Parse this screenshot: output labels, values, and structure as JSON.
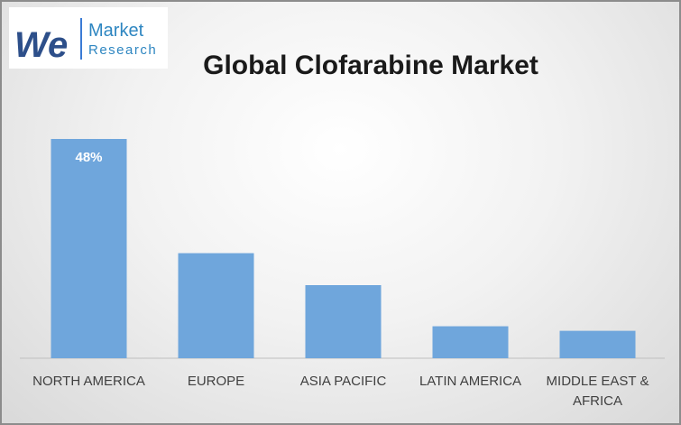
{
  "logo": {
    "mark": "We",
    "line1": "Market",
    "line2": "Research"
  },
  "chart_data": {
    "type": "bar",
    "title": "Global Clofarabine Market",
    "categories": [
      "NORTH AMERICA",
      "EUROPE",
      "ASIA PACIFIC",
      "LATIN AMERICA",
      "MIDDLE EAST & AFRICA"
    ],
    "values": [
      48,
      23,
      16,
      7,
      6
    ],
    "value_labels": [
      "48%",
      null,
      null,
      null,
      null
    ],
    "color": "#6fa6dc"
  }
}
